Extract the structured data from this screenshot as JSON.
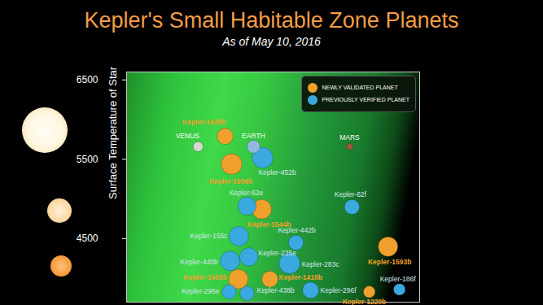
{
  "chart_data": {
    "type": "scatter",
    "title": "Kepler's Small Habitable Zone Planets",
    "subtitle": "As of May 10, 2016",
    "y_label": "Surface Temperature of Star",
    "xlim": [
      0,
      100
    ],
    "ylim": [
      3700,
      6600
    ],
    "yticks": [
      4500,
      5500,
      6500
    ],
    "tick_labels": "y",
    "legend": "top-right",
    "series": [
      {
        "name": "NEWLY VALIDATED PLANET",
        "color": "#f0a02c",
        "labels": [
          "Kepler-1638b",
          "Kepler-1606b",
          "Kepler-1544b",
          "Kepler-1593b",
          "Kepler-1455b",
          "Kepler-1410b",
          "Kepler-1229b"
        ],
        "x": [
          33.6,
          35.8,
          46.1,
          89.2,
          38.1,
          48.9,
          82.8
        ],
        "values": [
          5790,
          5440,
          4870,
          4400,
          3990,
          3990,
          3830
        ],
        "radius": [
          1.25,
          1.6,
          1.5,
          1.5,
          1.5,
          1.25,
          0.9
        ]
      },
      {
        "name": "PREVIOUSLY VERIFIED PLANET",
        "color": "#3aa9e0",
        "labels": [
          "Kepler-452b",
          "Kepler-62e",
          "Kepler-62f",
          "Kepler-442b",
          "Kepler-155c",
          "Kepler-235e",
          "Kepler-283c",
          "Kepler-440b",
          "Kepler-296e",
          "Kepler-438b",
          "Kepler-296f",
          "Kepler-186f"
        ],
        "x": [
          46.4,
          41.1,
          76.9,
          57.8,
          38.3,
          41.7,
          55.6,
          35.3,
          35.0,
          41.1,
          62.8,
          93.1
        ],
        "values": [
          5520,
          4910,
          4900,
          4450,
          4530,
          4270,
          4190,
          4220,
          3830,
          3810,
          3850,
          3860
        ],
        "radius": [
          1.6,
          1.4,
          1.15,
          1.15,
          1.5,
          1.4,
          1.6,
          1.5,
          1.1,
          1.1,
          1.25,
          0.9
        ]
      },
      {
        "labels": [
          "VENUS",
          "EARTH",
          "MARS"
        ],
        "colors": [
          "#d8d8d0",
          "#8fb8e0",
          "#9b5a3c"
        ],
        "x": [
          24.4,
          43.3,
          76.1
        ],
        "values": [
          5660,
          5660,
          5660
        ],
        "radius": [
          0.75,
          1.0,
          0.5
        ]
      }
    ]
  }
}
